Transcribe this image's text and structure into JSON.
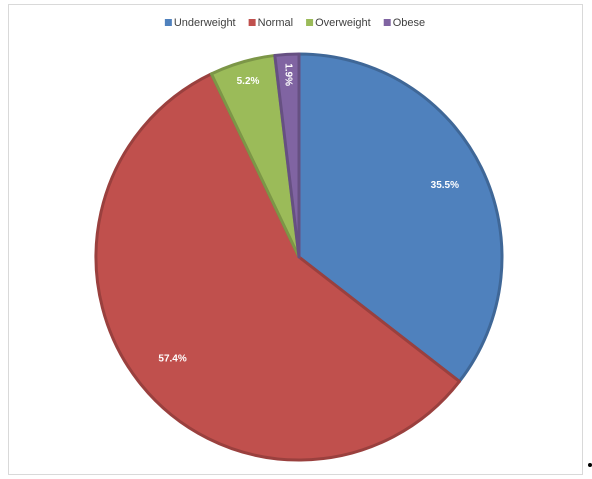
{
  "chart_data": {
    "type": "pie",
    "categories": [
      "Underweight",
      "Normal",
      "Overweight",
      "Obese"
    ],
    "values": [
      35.5,
      57.4,
      5.2,
      1.9
    ],
    "value_labels": [
      "35.5%",
      "57.4%",
      "5.2%",
      "1.9%"
    ],
    "colors": [
      "#4f81bd",
      "#c0504d",
      "#9bbb59",
      "#8064a2"
    ],
    "legend": "top"
  }
}
